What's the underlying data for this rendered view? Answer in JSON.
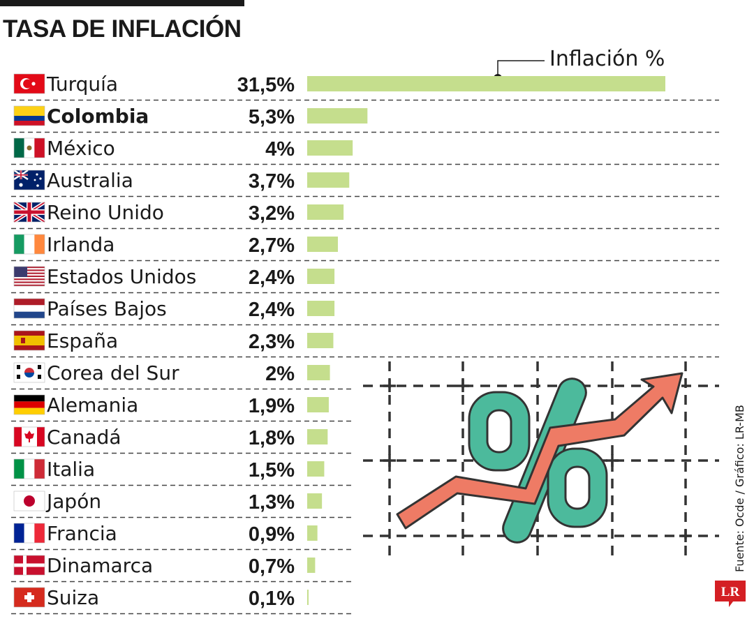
{
  "title": "TASA DE INFLACIÓN",
  "source": "Fuente: Ocde / Gráfico: LR-MB",
  "logo_text": "LR",
  "colors": {
    "bar": "#c5de8d",
    "illustration_red": "#ee7b65",
    "illustration_teal": "#4cba9c",
    "logo_red": "#d41f24"
  },
  "chart_data": {
    "type": "bar",
    "orientation": "horizontal",
    "legend": "Inflación %",
    "categories": [
      "Turquía",
      "Colombia",
      "México",
      "Australia",
      "Reino Unido",
      "Irlanda",
      "Estados Unidos",
      "Países Bajos",
      "España",
      "Corea del Sur",
      "Alemania",
      "Canadá",
      "Italia",
      "Japón",
      "Francia",
      "Dinamarca",
      "Suiza"
    ],
    "values": [
      31.5,
      5.3,
      4,
      3.7,
      3.2,
      2.7,
      2.4,
      2.4,
      2.3,
      2,
      1.9,
      1.8,
      1.5,
      1.3,
      0.9,
      0.7,
      0.1
    ],
    "value_labels": [
      "31,5%",
      "5,3%",
      "4%",
      "3,7%",
      "3,2%",
      "2,7%",
      "2,4%",
      "2,4%",
      "2,3%",
      "2%",
      "1,9%",
      "1,8%",
      "1,5%",
      "1,3%",
      "0,9%",
      "0,7%",
      "0,1%"
    ],
    "flags": [
      "turkey-flag",
      "colombia-flag",
      "mexico-flag",
      "australia-flag",
      "uk-flag",
      "ireland-flag",
      "usa-flag",
      "netherlands-flag",
      "spain-flag",
      "south-korea-flag",
      "germany-flag",
      "canada-flag",
      "italy-flag",
      "japan-flag",
      "france-flag",
      "denmark-flag",
      "switzerland-flag"
    ],
    "highlight": "Colombia",
    "xlim": [
      0,
      31.5
    ]
  }
}
